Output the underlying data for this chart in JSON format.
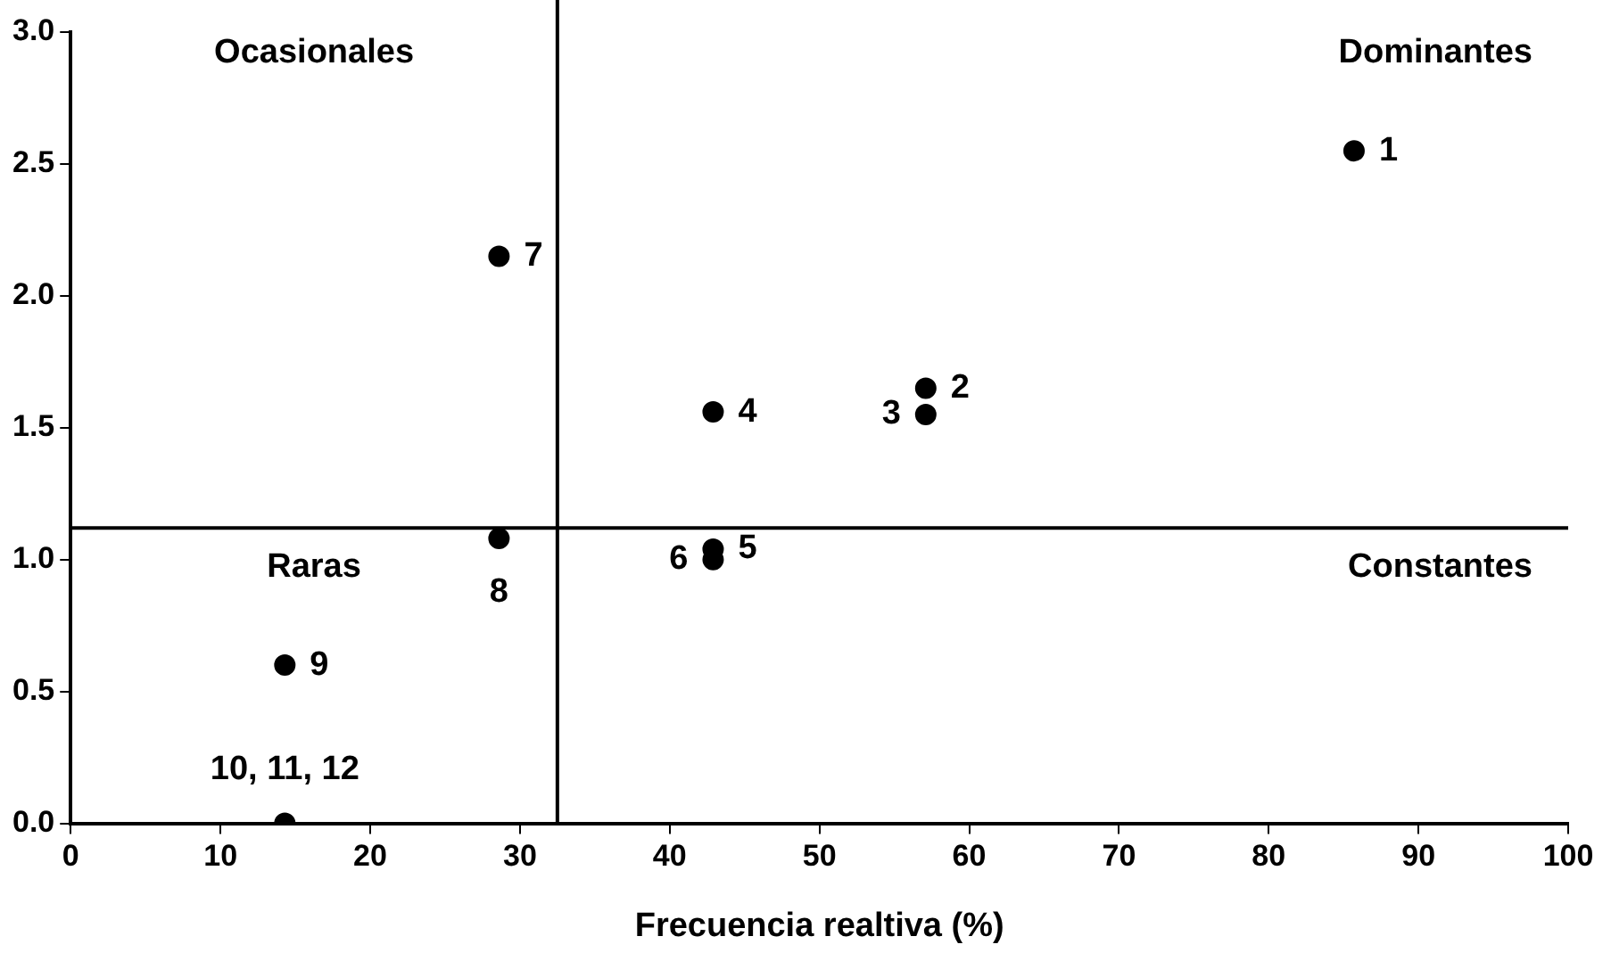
{
  "chart_data": {
    "type": "scatter",
    "xlabel": "Frecuencia realtiva (%)",
    "x": [
      85.7,
      57.1,
      57.1,
      42.9,
      42.9,
      42.9,
      28.6,
      28.6,
      14.3,
      14.3
    ],
    "values": [
      2.55,
      1.65,
      1.55,
      1.56,
      1.04,
      1.0,
      2.15,
      1.08,
      0.6,
      0.0
    ],
    "color": "#000000",
    "marker": "circle",
    "grid": false,
    "legend": false,
    "xlim": [
      0,
      100
    ],
    "xticks": [
      0,
      10,
      20,
      30,
      40,
      50,
      60,
      70,
      80,
      90,
      100
    ],
    "ylim": [
      0,
      3
    ],
    "yticks": [
      {
        "value": 0,
        "label": "0.0"
      },
      {
        "value": 0.5,
        "label": "0.5"
      },
      {
        "value": 1,
        "label": "1.0"
      },
      {
        "value": 1.5,
        "label": "1.5"
      },
      {
        "value": 2,
        "label": "2.0"
      },
      {
        "value": 2.5,
        "label": "2.5"
      },
      {
        "value": 3,
        "label": "3.0"
      }
    ],
    "ref_lines": [
      {
        "axis": "x",
        "value": 32.5,
        "color": "#000000"
      },
      {
        "axis": "y",
        "value": 1.12,
        "color": "#000000"
      }
    ],
    "annotations": [
      {
        "text": "1",
        "x": 85.7,
        "y": 2.55
      },
      {
        "text": "2",
        "x": 57.1,
        "y": 1.65
      },
      {
        "text": "3",
        "x": 57.1,
        "y": 1.55
      },
      {
        "text": "4",
        "x": 42.9,
        "y": 1.56
      },
      {
        "text": "5",
        "x": 42.9,
        "y": 1.04
      },
      {
        "text": "6",
        "x": 42.9,
        "y": 1.0
      },
      {
        "text": "7",
        "x": 28.6,
        "y": 2.15
      },
      {
        "text": "8",
        "x": 28.6,
        "y": 1.08
      },
      {
        "text": "9",
        "x": 14.3,
        "y": 0.6
      },
      {
        "text": "10, 11, 12",
        "x": 14.3,
        "y": 0.0
      },
      "Ocasionales",
      "Dominantes",
      "Raras",
      "Constantes"
    ]
  }
}
